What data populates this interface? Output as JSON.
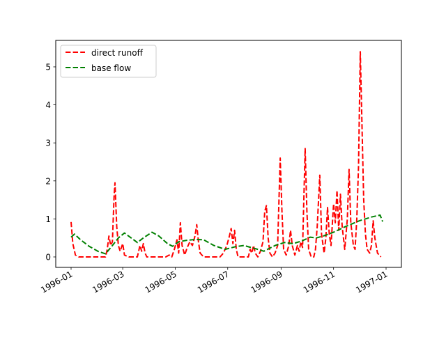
{
  "chart_data": {
    "type": "line",
    "title": "",
    "xlabel": "",
    "ylabel": "",
    "ylim": [
      -0.27,
      5.7
    ],
    "xlim": [
      "1995-12-14",
      "1997-01-08"
    ],
    "grid": false,
    "legend_position": "upper left",
    "x_ticks": [
      "1996-01",
      "1996-03",
      "1996-05",
      "1996-07",
      "1996-09",
      "1996-11",
      "1997-01"
    ],
    "y_ticks": [
      "0",
      "1",
      "2",
      "3",
      "4",
      "5"
    ],
    "series": [
      {
        "name": "direct runoff",
        "color": "#ff0000",
        "style": "dashed",
        "points": [
          [
            "1996-01-01",
            0.92
          ],
          [
            "1996-01-03",
            0.35
          ],
          [
            "1996-01-06",
            0.05
          ],
          [
            "1996-01-10",
            0.0
          ],
          [
            "1996-01-20",
            0.0
          ],
          [
            "1996-02-01",
            0.0
          ],
          [
            "1996-02-10",
            0.0
          ],
          [
            "1996-02-12",
            0.2
          ],
          [
            "1996-02-14",
            0.55
          ],
          [
            "1996-02-16",
            0.3
          ],
          [
            "1996-02-18",
            0.4
          ],
          [
            "1996-02-20",
            1.6
          ],
          [
            "1996-02-21",
            1.95
          ],
          [
            "1996-02-23",
            0.8
          ],
          [
            "1996-02-25",
            0.3
          ],
          [
            "1996-02-27",
            0.15
          ],
          [
            "1996-03-01",
            0.35
          ],
          [
            "1996-03-03",
            0.05
          ],
          [
            "1996-03-08",
            0.0
          ],
          [
            "1996-03-18",
            0.0
          ],
          [
            "1996-03-21",
            0.3
          ],
          [
            "1996-03-23",
            0.15
          ],
          [
            "1996-03-25",
            0.35
          ],
          [
            "1996-03-27",
            0.1
          ],
          [
            "1996-03-29",
            0.0
          ],
          [
            "1996-04-10",
            0.0
          ],
          [
            "1996-04-20",
            0.0
          ],
          [
            "1996-04-24",
            0.05
          ],
          [
            "1996-04-27",
            0.0
          ],
          [
            "1996-04-30",
            0.2
          ],
          [
            "1996-05-03",
            0.45
          ],
          [
            "1996-05-05",
            0.1
          ],
          [
            "1996-05-07",
            0.9
          ],
          [
            "1996-05-09",
            0.3
          ],
          [
            "1996-05-12",
            0.05
          ],
          [
            "1996-05-15",
            0.25
          ],
          [
            "1996-05-18",
            0.4
          ],
          [
            "1996-05-21",
            0.3
          ],
          [
            "1996-05-24",
            0.55
          ],
          [
            "1996-05-26",
            0.85
          ],
          [
            "1996-05-28",
            0.4
          ],
          [
            "1996-05-30",
            0.1
          ],
          [
            "1996-06-03",
            0.0
          ],
          [
            "1996-06-15",
            0.0
          ],
          [
            "1996-06-22",
            0.0
          ],
          [
            "1996-06-26",
            0.1
          ],
          [
            "1996-06-30",
            0.3
          ],
          [
            "1996-07-03",
            0.55
          ],
          [
            "1996-07-05",
            0.75
          ],
          [
            "1996-07-07",
            0.35
          ],
          [
            "1996-07-09",
            0.7
          ],
          [
            "1996-07-11",
            0.2
          ],
          [
            "1996-07-13",
            0.0
          ],
          [
            "1996-07-25",
            0.0
          ],
          [
            "1996-07-27",
            0.2
          ],
          [
            "1996-07-29",
            0.1
          ],
          [
            "1996-07-31",
            0.3
          ],
          [
            "1996-08-02",
            0.1
          ],
          [
            "1996-08-05",
            0.0
          ],
          [
            "1996-08-08",
            0.15
          ],
          [
            "1996-08-11",
            0.4
          ],
          [
            "1996-08-13",
            1.2
          ],
          [
            "1996-08-15",
            1.35
          ],
          [
            "1996-08-17",
            0.5
          ],
          [
            "1996-08-19",
            0.1
          ],
          [
            "1996-08-22",
            0.0
          ],
          [
            "1996-08-25",
            0.1
          ],
          [
            "1996-08-28",
            0.3
          ],
          [
            "1996-08-31",
            2.6
          ],
          [
            "1996-09-02",
            1.2
          ],
          [
            "1996-09-04",
            0.2
          ],
          [
            "1996-09-07",
            0.05
          ],
          [
            "1996-09-10",
            0.3
          ],
          [
            "1996-09-12",
            0.7
          ],
          [
            "1996-09-14",
            0.3
          ],
          [
            "1996-09-17",
            0.05
          ],
          [
            "1996-09-20",
            0.3
          ],
          [
            "1996-09-22",
            0.15
          ],
          [
            "1996-09-24",
            0.4
          ],
          [
            "1996-09-26",
            0.25
          ],
          [
            "1996-09-29",
            2.85
          ],
          [
            "1996-10-01",
            1.2
          ],
          [
            "1996-10-03",
            0.2
          ],
          [
            "1996-10-06",
            0.0
          ],
          [
            "1996-10-09",
            0.0
          ],
          [
            "1996-10-11",
            0.2
          ],
          [
            "1996-10-13",
            0.8
          ],
          [
            "1996-10-16",
            2.15
          ],
          [
            "1996-10-18",
            0.6
          ],
          [
            "1996-10-21",
            0.1
          ],
          [
            "1996-10-23",
            0.5
          ],
          [
            "1996-10-25",
            1.3
          ],
          [
            "1996-10-27",
            0.6
          ],
          [
            "1996-10-29",
            0.3
          ],
          [
            "1996-11-01",
            1.4
          ],
          [
            "1996-11-03",
            0.9
          ],
          [
            "1996-11-05",
            1.75
          ],
          [
            "1996-11-07",
            0.7
          ],
          [
            "1996-11-09",
            1.65
          ],
          [
            "1996-11-11",
            0.8
          ],
          [
            "1996-11-14",
            0.2
          ],
          [
            "1996-11-17",
            1.0
          ],
          [
            "1996-11-19",
            2.3
          ],
          [
            "1996-11-21",
            0.9
          ],
          [
            "1996-11-24",
            0.3
          ],
          [
            "1996-11-26",
            0.2
          ],
          [
            "1996-11-28",
            1.0
          ],
          [
            "1996-11-30",
            2.4
          ],
          [
            "1996-12-02",
            5.4
          ],
          [
            "1996-12-04",
            3.5
          ],
          [
            "1996-12-06",
            1.5
          ],
          [
            "1996-12-08",
            0.6
          ],
          [
            "1996-12-10",
            0.2
          ],
          [
            "1996-12-13",
            0.1
          ],
          [
            "1996-12-15",
            0.3
          ],
          [
            "1996-12-17",
            0.95
          ],
          [
            "1996-12-19",
            0.5
          ],
          [
            "1996-12-22",
            0.1
          ],
          [
            "1996-12-26",
            0.0
          ]
        ]
      },
      {
        "name": "base flow",
        "color": "#008000",
        "style": "dashed",
        "points": [
          [
            "1996-01-01",
            0.52
          ],
          [
            "1996-01-05",
            0.6
          ],
          [
            "1996-01-12",
            0.45
          ],
          [
            "1996-01-22",
            0.28
          ],
          [
            "1996-02-01",
            0.15
          ],
          [
            "1996-02-10",
            0.08
          ],
          [
            "1996-02-18",
            0.3
          ],
          [
            "1996-02-25",
            0.5
          ],
          [
            "1996-03-03",
            0.63
          ],
          [
            "1996-03-12",
            0.48
          ],
          [
            "1996-03-18",
            0.38
          ],
          [
            "1996-03-25",
            0.5
          ],
          [
            "1996-04-04",
            0.65
          ],
          [
            "1996-04-12",
            0.55
          ],
          [
            "1996-04-22",
            0.35
          ],
          [
            "1996-04-28",
            0.28
          ],
          [
            "1996-05-05",
            0.4
          ],
          [
            "1996-05-15",
            0.44
          ],
          [
            "1996-05-25",
            0.46
          ],
          [
            "1996-06-03",
            0.45
          ],
          [
            "1996-06-15",
            0.3
          ],
          [
            "1996-06-28",
            0.2
          ],
          [
            "1996-07-10",
            0.27
          ],
          [
            "1996-07-20",
            0.3
          ],
          [
            "1996-07-28",
            0.25
          ],
          [
            "1996-08-05",
            0.2
          ],
          [
            "1996-08-12",
            0.15
          ],
          [
            "1996-08-25",
            0.3
          ],
          [
            "1996-09-05",
            0.38
          ],
          [
            "1996-09-15",
            0.35
          ],
          [
            "1996-09-25",
            0.42
          ],
          [
            "1996-10-05",
            0.52
          ],
          [
            "1996-10-12",
            0.5
          ],
          [
            "1996-10-20",
            0.55
          ],
          [
            "1996-11-01",
            0.65
          ],
          [
            "1996-11-15",
            0.8
          ],
          [
            "1996-12-01",
            0.95
          ],
          [
            "1996-12-15",
            1.05
          ],
          [
            "1996-12-25",
            1.1
          ],
          [
            "1996-12-28",
            0.93
          ]
        ]
      }
    ]
  },
  "legend": {
    "items": [
      {
        "label": "direct runoff",
        "color": "#ff0000"
      },
      {
        "label": "base flow",
        "color": "#008000"
      }
    ]
  }
}
